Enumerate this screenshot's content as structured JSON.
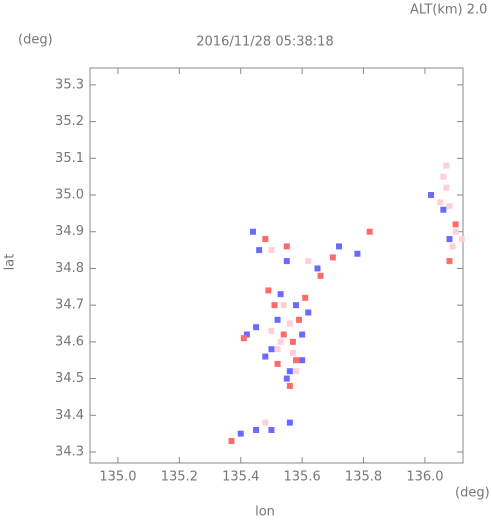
{
  "chart_data": {
    "type": "scatter",
    "title": "2016/11/28 05:38:18",
    "annotation": "ALT(km) 2.0",
    "y_unit": "(deg)",
    "x_unit": "(deg)",
    "ylabel": "lat",
    "xlabel": "lon",
    "xlim": [
      134.909,
      136.124
    ],
    "ylim": [
      34.27,
      35.346
    ],
    "xticks": [
      {
        "value": 135,
        "label": "135.0"
      },
      135.2,
      135.4,
      135.6,
      135.8,
      {
        "value": 136,
        "label": "136.0"
      }
    ],
    "yticks": [
      34.3,
      34.4,
      34.5,
      34.6,
      34.7,
      34.8,
      34.9,
      {
        "value": 35,
        "label": "35.0"
      },
      35.1,
      35.2,
      35.3
    ],
    "series": [
      {
        "color": "#6a6aff",
        "x": [
          135.55,
          135.5,
          135.45,
          135.58,
          135.52,
          135.6,
          135.48,
          135.56,
          135.53,
          135.62,
          135.46,
          135.55,
          135.65,
          135.72,
          135.78,
          135.44,
          135.4,
          135.45,
          135.5,
          135.56,
          136.02,
          136.06,
          136.08,
          135.42,
          135.6
        ],
        "values": [
          34.5,
          34.58,
          34.64,
          34.7,
          34.66,
          34.62,
          34.56,
          34.52,
          34.73,
          34.68,
          34.85,
          34.82,
          34.8,
          34.86,
          34.84,
          34.9,
          34.35,
          34.36,
          34.36,
          34.38,
          35.0,
          34.96,
          34.88,
          34.62,
          34.55
        ]
      },
      {
        "color": "#ff6a6a",
        "x": [
          135.54,
          135.57,
          135.51,
          135.58,
          135.52,
          135.61,
          135.48,
          135.55,
          135.7,
          135.82,
          135.66,
          135.37,
          135.41,
          135.56,
          136.1,
          136.08,
          135.49,
          135.59
        ],
        "values": [
          34.62,
          34.6,
          34.7,
          34.55,
          34.54,
          34.72,
          34.88,
          34.86,
          34.83,
          34.9,
          34.78,
          34.33,
          34.61,
          34.48,
          34.92,
          34.82,
          34.74,
          34.66
        ]
      },
      {
        "color": "#ffd0d8",
        "x": [
          135.53,
          135.56,
          135.5,
          135.57,
          135.54,
          135.52,
          136.06,
          136.07,
          136.05,
          136.08,
          136.1,
          136.12,
          136.09,
          136.07,
          135.58,
          135.5,
          135.62,
          135.48
        ],
        "values": [
          34.6,
          34.65,
          34.63,
          34.57,
          34.7,
          34.58,
          35.05,
          35.02,
          34.98,
          34.97,
          34.9,
          34.88,
          34.86,
          35.08,
          34.52,
          34.85,
          34.82,
          34.38
        ]
      }
    ]
  }
}
